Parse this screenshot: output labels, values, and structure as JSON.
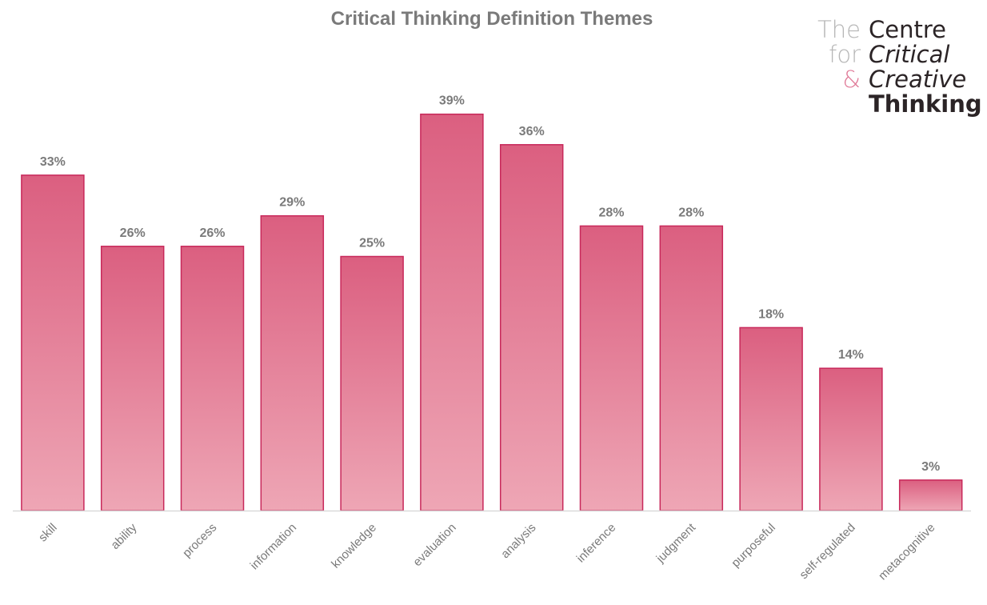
{
  "chart_data": {
    "type": "bar",
    "title": "Critical Thinking Definition Themes",
    "xlabel": "",
    "ylabel": "",
    "ylim": [
      0,
      45
    ],
    "grid": false,
    "categories": [
      "skill",
      "ability",
      "process",
      "information",
      "knowledge",
      "evaluation",
      "analysis",
      "inference",
      "judgment",
      "purposeful",
      "self-regulated",
      "metacognitive"
    ],
    "values": [
      33,
      26,
      26,
      29,
      25,
      39,
      36,
      28,
      28,
      18,
      14,
      3
    ],
    "value_labels": [
      "33%",
      "26%",
      "26%",
      "29%",
      "25%",
      "39%",
      "36%",
      "28%",
      "28%",
      "18%",
      "14%",
      "3%"
    ],
    "colors": {
      "bar_top": "#db5f80",
      "bar_bottom": "#eea6b5",
      "bar_stroke": "#c8285a",
      "label_text": "#7a7a7a",
      "axis": "#d9d9d9"
    }
  },
  "logo": {
    "left_words": [
      "The",
      "for",
      "&"
    ],
    "right_words": [
      "Centre",
      "Critical",
      "Creative",
      "Thinking"
    ]
  }
}
